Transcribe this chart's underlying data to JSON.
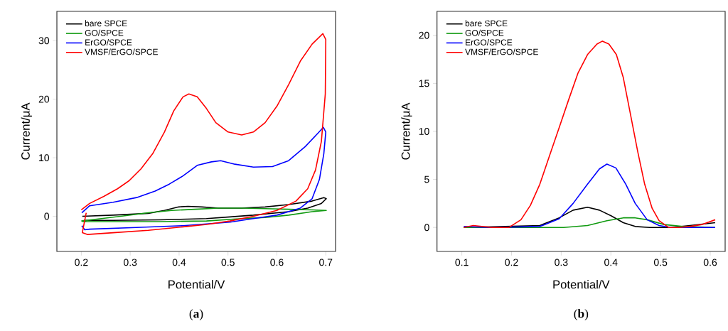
{
  "chart_data": [
    {
      "type": "line",
      "title": "(**a**)",
      "xlabel": "Potential/V",
      "ylabel": "Current/μA",
      "xlim": [
        0.15,
        0.72
      ],
      "ylim": [
        -6,
        35
      ],
      "xticks": [
        0.2,
        0.3,
        0.4,
        0.5,
        0.6,
        0.7
      ],
      "yticks": [
        0,
        10,
        20,
        30
      ],
      "legend": "top left",
      "series": [
        {
          "name": "bare SPCE",
          "color": "#000000",
          "x": [
            0.202,
            0.265,
            0.337,
            0.37,
            0.399,
            0.418,
            0.447,
            0.48,
            0.528,
            0.576,
            0.624,
            0.672,
            0.696,
            0.701,
            0.691,
            0.663,
            0.624,
            0.552,
            0.504,
            0.456,
            0.361,
            0.265,
            0.205
          ],
          "values": [
            0,
            0.2,
            0.5,
            1.0,
            1.6,
            1.7,
            1.6,
            1.4,
            1.4,
            1.6,
            2.0,
            2.6,
            3.2,
            3.0,
            2.2,
            1.4,
            0.8,
            0.2,
            -0.1,
            -0.4,
            -0.6,
            -0.7,
            -0.7
          ]
        },
        {
          "name": "GO/SPCE",
          "color": "#109a10",
          "x": [
            0.2,
            0.241,
            0.289,
            0.337,
            0.385,
            0.433,
            0.48,
            0.528,
            0.576,
            0.624,
            0.672,
            0.701,
            0.672,
            0.624,
            0.576,
            0.528,
            0.456,
            0.361,
            0.265,
            0.202
          ],
          "values": [
            -0.8,
            -0.4,
            0.1,
            0.6,
            1.0,
            1.2,
            1.4,
            1.4,
            1.3,
            1.2,
            1.1,
            1.0,
            0.8,
            0.2,
            -0.2,
            -0.4,
            -0.8,
            -0.9,
            -0.9,
            -0.9
          ]
        },
        {
          "name": "ErGO/SPCE",
          "color": "#0000ff",
          "x": [
            0.201,
            0.217,
            0.265,
            0.313,
            0.351,
            0.38,
            0.408,
            0.437,
            0.466,
            0.485,
            0.514,
            0.552,
            0.591,
            0.624,
            0.658,
            0.684,
            0.695,
            0.7,
            0.696,
            0.687,
            0.672,
            0.648,
            0.6,
            0.552,
            0.504,
            0.408,
            0.313,
            0.217,
            0.207,
            0.201
          ],
          "values": [
            0.6,
            1.8,
            2.4,
            3.2,
            4.3,
            5.5,
            6.9,
            8.7,
            9.3,
            9.5,
            8.9,
            8.4,
            8.5,
            9.5,
            11.9,
            14.2,
            15.2,
            14.4,
            10.7,
            6.3,
            3.0,
            1.4,
            0.2,
            -0.4,
            -1.0,
            -1.6,
            -1.9,
            -2.2,
            -2.3,
            -1.6
          ]
        },
        {
          "name": "VMSF/ErGO/SPCE",
          "color": "#ff0000",
          "x": [
            0.2,
            0.217,
            0.246,
            0.274,
            0.298,
            0.322,
            0.346,
            0.37,
            0.389,
            0.408,
            0.42,
            0.437,
            0.456,
            0.475,
            0.5,
            0.528,
            0.552,
            0.576,
            0.6,
            0.624,
            0.648,
            0.672,
            0.694,
            0.7,
            0.699,
            0.691,
            0.679,
            0.663,
            0.639,
            0.6,
            0.552,
            0.504,
            0.456,
            0.408,
            0.337,
            0.265,
            0.212,
            0.202,
            0.21
          ],
          "values": [
            1.1,
            2.2,
            3.4,
            4.7,
            6.1,
            8.1,
            10.7,
            14.4,
            18,
            20.4,
            20.9,
            20.4,
            18.4,
            16,
            14.4,
            13.9,
            14.4,
            16,
            18.8,
            22.5,
            26.5,
            29.4,
            31.2,
            30.2,
            20.9,
            12.8,
            7.9,
            4.7,
            2.6,
            1.0,
            0,
            -0.8,
            -1.4,
            -1.8,
            -2.4,
            -2.8,
            -3.1,
            -2.8,
            0.6
          ]
        }
      ]
    },
    {
      "type": "line",
      "title": "(**b**)",
      "xlabel": "Potential/V",
      "ylabel": "Current/μA",
      "xlim": [
        0.05,
        0.63
      ],
      "ylim": [
        -2.5,
        22.5
      ],
      "xticks": [
        0.1,
        0.2,
        0.3,
        0.4,
        0.5,
        0.6
      ],
      "yticks": [
        0,
        5,
        10,
        15,
        20
      ],
      "legend": "top left",
      "series": [
        {
          "name": "bare SPCE",
          "color": "#000000",
          "x": [
            0.104,
            0.257,
            0.296,
            0.324,
            0.353,
            0.377,
            0.401,
            0.425,
            0.449,
            0.478,
            0.521,
            0.559,
            0.61
          ],
          "values": [
            0,
            0.2,
            1.0,
            1.8,
            2.1,
            1.8,
            1.2,
            0.5,
            0.1,
            0,
            0,
            0.2,
            0.5
          ]
        },
        {
          "name": "GO/SPCE",
          "color": "#109a10",
          "x": [
            0.104,
            0.305,
            0.353,
            0.392,
            0.425,
            0.449,
            0.473,
            0.507,
            0.545,
            0.61
          ],
          "values": [
            0,
            0,
            0.2,
            0.7,
            1.0,
            1.0,
            0.8,
            0.3,
            0.1,
            0
          ]
        },
        {
          "name": "ErGO/SPCE",
          "color": "#0000ff",
          "x": [
            0.104,
            0.161,
            0.257,
            0.296,
            0.324,
            0.353,
            0.377,
            0.392,
            0.41,
            0.43,
            0.449,
            0.473,
            0.497,
            0.521,
            0.61
          ],
          "values": [
            0.1,
            0,
            0.1,
            0.9,
            2.5,
            4.5,
            6.1,
            6.6,
            6.2,
            4.5,
            2.5,
            0.8,
            0.2,
            0,
            0
          ]
        },
        {
          "name": "VMSF/ErGO/SPCE",
          "color": "#ff0000",
          "x": [
            0.104,
            0.123,
            0.161,
            0.195,
            0.219,
            0.238,
            0.257,
            0.276,
            0.296,
            0.315,
            0.334,
            0.353,
            0.372,
            0.383,
            0.396,
            0.411,
            0.425,
            0.439,
            0.454,
            0.468,
            0.483,
            0.497,
            0.516,
            0.535,
            0.559,
            0.583,
            0.61
          ],
          "values": [
            0,
            0.2,
            0,
            0,
            0.8,
            2.3,
            4.5,
            7.4,
            10.4,
            13.3,
            16.1,
            18,
            19.1,
            19.4,
            19.1,
            18,
            15.6,
            11.9,
            7.9,
            4.5,
            2.0,
            0.7,
            0,
            0,
            0.1,
            0.3,
            0.8
          ]
        }
      ]
    }
  ]
}
